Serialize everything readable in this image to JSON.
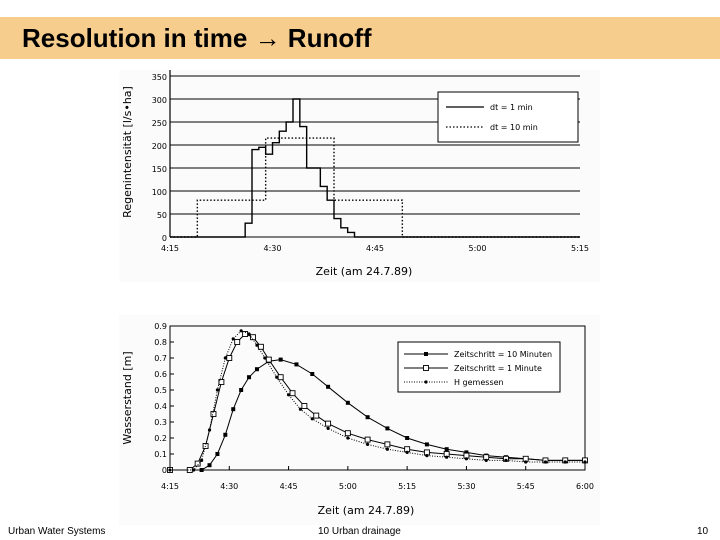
{
  "slide": {
    "title": "Resolution in time → Runoff",
    "footer_left": "Urban Water Systems",
    "footer_center": "10 Urban drainage",
    "footer_right": "10"
  },
  "chart_data": [
    {
      "type": "line",
      "ylabel": "Regenintensität [l/s•ha]",
      "xlabel": "Zeit (am 24.7.89)",
      "x_ticks": [
        "4:15",
        "4:30",
        "4:45",
        "5:00",
        "5:15"
      ],
      "y_ticks": [
        "0",
        "50",
        "100",
        "150",
        "200",
        "250",
        "300",
        "350"
      ],
      "xlim": [
        0,
        60
      ],
      "ylim": [
        0,
        350
      ],
      "grid": "horizontal",
      "legend": "top-right",
      "series": [
        {
          "name": "dt = 1 min",
          "style": "solid",
          "x": [
            0,
            11,
            11,
            12,
            12,
            13,
            13,
            14,
            14,
            15,
            15,
            16,
            16,
            17,
            17,
            18,
            18,
            19,
            19,
            20,
            20,
            22,
            22,
            23,
            23,
            24,
            24,
            25,
            25,
            26,
            26,
            27,
            27,
            60
          ],
          "y": [
            0,
            0,
            30,
            30,
            190,
            190,
            195,
            195,
            180,
            180,
            205,
            205,
            230,
            230,
            250,
            250,
            300,
            300,
            240,
            240,
            150,
            150,
            110,
            110,
            80,
            80,
            40,
            40,
            20,
            20,
            10,
            10,
            0,
            0
          ]
        },
        {
          "name": "dt = 10 min",
          "style": "dotted",
          "x": [
            0,
            4,
            4,
            14,
            14,
            24,
            24,
            34,
            34,
            60
          ],
          "y": [
            0,
            0,
            80,
            80,
            215,
            215,
            80,
            80,
            0,
            0
          ]
        }
      ]
    },
    {
      "type": "line",
      "ylabel": "Wasserstand [m]",
      "xlabel": "Zeit (am 24.7.89)",
      "x_ticks": [
        "4:15",
        "4:30",
        "4:45",
        "5:00",
        "5:15",
        "5:30",
        "5:45",
        "6:00"
      ],
      "y_ticks": [
        "0",
        "0.1",
        "0.2",
        "0.3",
        "0.4",
        "0.5",
        "0.6",
        "0.7",
        "0.8",
        "0.9"
      ],
      "xlim": [
        0,
        105
      ],
      "ylim": [
        0,
        0.9
      ],
      "legend": "top-right",
      "series": [
        {
          "name": "Zeitschritt = 10 Minuten",
          "marker": "filled-square",
          "x": [
            0,
            8,
            10,
            12,
            14,
            16,
            18,
            20,
            22,
            25,
            28,
            32,
            36,
            40,
            45,
            50,
            55,
            60,
            65,
            70,
            75,
            80,
            85,
            90,
            95,
            100,
            105
          ],
          "y": [
            0,
            0,
            0.03,
            0.1,
            0.22,
            0.38,
            0.5,
            0.58,
            0.63,
            0.68,
            0.69,
            0.66,
            0.6,
            0.52,
            0.42,
            0.33,
            0.26,
            0.2,
            0.16,
            0.13,
            0.11,
            0.09,
            0.08,
            0.07,
            0.06,
            0.06,
            0.06
          ]
        },
        {
          "name": "Zeitschritt = 1 Minute",
          "marker": "open-square",
          "x": [
            0,
            5,
            7,
            9,
            11,
            13,
            15,
            17,
            19,
            21,
            23,
            25,
            28,
            31,
            34,
            37,
            40,
            45,
            50,
            55,
            60,
            65,
            70,
            75,
            80,
            85,
            90,
            95,
            100,
            105
          ],
          "y": [
            0,
            0,
            0.04,
            0.15,
            0.35,
            0.55,
            0.7,
            0.8,
            0.85,
            0.83,
            0.77,
            0.69,
            0.58,
            0.48,
            0.4,
            0.34,
            0.29,
            0.23,
            0.19,
            0.16,
            0.13,
            0.11,
            0.1,
            0.09,
            0.08,
            0.07,
            0.07,
            0.06,
            0.06,
            0.06
          ]
        },
        {
          "name": "H gemessen",
          "marker": "dot",
          "x": [
            0,
            6,
            8,
            10,
            12,
            14,
            16,
            18,
            20,
            22,
            24,
            27,
            30,
            33,
            36,
            40,
            45,
            50,
            55,
            60,
            65,
            70,
            75,
            80,
            85,
            90,
            95,
            100,
            105
          ],
          "y": [
            0,
            0,
            0.06,
            0.25,
            0.5,
            0.7,
            0.82,
            0.87,
            0.85,
            0.78,
            0.7,
            0.58,
            0.47,
            0.38,
            0.32,
            0.26,
            0.2,
            0.16,
            0.13,
            0.11,
            0.09,
            0.08,
            0.07,
            0.06,
            0.06,
            0.05,
            0.05,
            0.05,
            0.05
          ]
        }
      ]
    }
  ]
}
